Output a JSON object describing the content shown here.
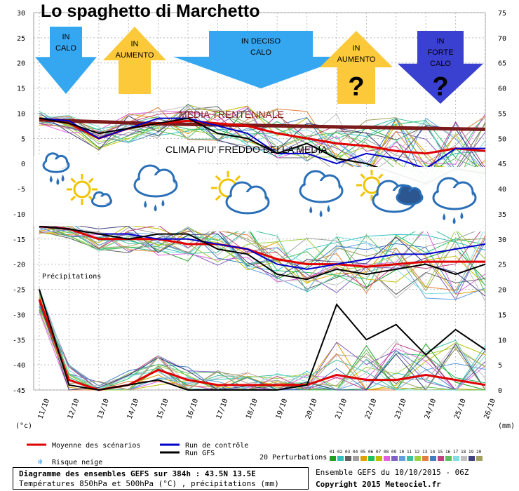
{
  "title": "Lo spaghetto di Marchetto",
  "chart_data": {
    "type": "line",
    "x_categories": [
      "11/10",
      "12/10",
      "13/10",
      "14/10",
      "15/10",
      "16/10",
      "17/10",
      "18/10",
      "19/10",
      "20/10",
      "21/10",
      "22/10",
      "23/10",
      "24/10",
      "25/10",
      "26/10"
    ],
    "left_axis": {
      "unit": "(°c)",
      "ticks": [
        30,
        25,
        20,
        15,
        10,
        5,
        0,
        -5,
        -10,
        -15,
        -20,
        -25,
        -30,
        -35,
        -40,
        -45
      ],
      "ylim": [
        -45,
        30
      ]
    },
    "right_axis": {
      "unit": "(mm)",
      "ticks": [
        75,
        70,
        65,
        60,
        55,
        50,
        45,
        40,
        35,
        30,
        25,
        20,
        15,
        10,
        5,
        0
      ],
      "ylim": [
        0,
        75
      ]
    },
    "grid": true,
    "series": [
      {
        "name": "Moyenne des scénarios",
        "color": "#e00000",
        "group": "t850",
        "values": [
          9,
          8,
          5,
          7,
          8,
          8.5,
          8,
          7.5,
          6,
          5,
          4,
          3.5,
          2.5,
          2,
          3,
          2.5
        ]
      },
      {
        "name": "Run de contrôle",
        "color": "#0000cc",
        "group": "t850",
        "values": [
          9,
          8.5,
          5,
          7,
          9,
          9,
          7.5,
          6,
          2,
          2,
          0,
          2,
          1,
          -1,
          3,
          3
        ]
      },
      {
        "name": "Run GFS",
        "color": "#000000",
        "group": "t850",
        "values": [
          9,
          8,
          6,
          7,
          8,
          9,
          6,
          5,
          2,
          4,
          1,
          0,
          -2,
          -4,
          -1,
          -2
        ]
      },
      {
        "name": "Moyenne des scénarios",
        "color": "#e00000",
        "group": "t500",
        "values": [
          -12.5,
          -13,
          -15,
          -15,
          -15,
          -16,
          -16,
          -17,
          -19,
          -20,
          -20,
          -20.5,
          -20,
          -19.5,
          -19.5,
          -19.5
        ]
      },
      {
        "name": "Run de contrôle",
        "color": "#0000cc",
        "group": "t500",
        "values": [
          -12.5,
          -13,
          -14,
          -14,
          -15,
          -15,
          -16,
          -17,
          -20,
          -21,
          -20,
          -19,
          -18,
          -18,
          -17,
          -16
        ]
      },
      {
        "name": "Run GFS",
        "color": "#000000",
        "group": "t500",
        "values": [
          -12.5,
          -13,
          -14,
          -15,
          -14,
          -14,
          -17,
          -18,
          -22,
          -23,
          -21,
          -22,
          -21,
          -20,
          -22,
          -20
        ]
      },
      {
        "name": "Moyenne des scénarios",
        "color": "#e00000",
        "group": "precip",
        "values": [
          18,
          2,
          0,
          1,
          4,
          2,
          1,
          1,
          1,
          1,
          3,
          2,
          2,
          3,
          2,
          1
        ]
      },
      {
        "name": "Run GFS",
        "color": "#000000",
        "group": "precip",
        "values": [
          20,
          1,
          0,
          1,
          2,
          0,
          0,
          0,
          0,
          1,
          17,
          10,
          13,
          7,
          12,
          8
        ]
      }
    ],
    "media_trentennale": [
      8.7,
      8.5,
      8.3,
      8.1,
      7.9,
      7.8,
      7.7,
      7.6,
      7.5,
      7.4,
      7.3,
      7.2,
      7.1,
      7.0,
      6.9,
      6.8
    ],
    "annotations": {
      "precip_label": "Précipitations",
      "media": "MEDIA TRENTENNALE",
      "clima": "CLIMA PIU' FREDDO DELLA MEDIA"
    },
    "arrows": [
      {
        "label1": "IN",
        "label2": "CALO",
        "label3": "",
        "question": "",
        "color": "#35a7f0",
        "direction": "down"
      },
      {
        "label1": "IN",
        "label2": "AUMENTO",
        "label3": "",
        "question": "",
        "color": "#fbc93a",
        "direction": "up"
      },
      {
        "label1": "IN DECISO",
        "label2": "CALO",
        "label3": "",
        "question": "",
        "color": "#35a7f0",
        "direction": "down"
      },
      {
        "label1": "IN",
        "label2": "AUMENTO",
        "label3": "",
        "question": "?",
        "color": "#fbc93a",
        "direction": "up"
      },
      {
        "label1": "IN",
        "label2": "FORTE",
        "label3": "CALO",
        "question": "?",
        "color": "#3a40d0",
        "direction": "down"
      }
    ],
    "weather_icons": [
      "rain",
      "sun-cloud",
      "cloud-rain",
      "sun-cloud",
      "cloud-rain",
      "sun-dark-cloud",
      "cloud-rain"
    ],
    "legend": {
      "mean": "Moyenne des scénarios",
      "control": "Run de contrôle",
      "gfs": "Run GFS",
      "snow": "Risque neige",
      "perturbations": "20 Perturbations",
      "pert_numbers": [
        "01",
        "02",
        "03",
        "04",
        "05",
        "06",
        "07",
        "08",
        "09",
        "10",
        "11",
        "12",
        "13",
        "14",
        "15",
        "16",
        "17",
        "18",
        "19",
        "20"
      ],
      "pert_colors": [
        "#20a020",
        "#30c0c0",
        "#606060",
        "#a0a0a0",
        "#e0a000",
        "#20c060",
        "#c0c000",
        "#e060e0",
        "#8060c0",
        "#60a0e0",
        "#40c0a0",
        "#a0d040",
        "#e08040",
        "#4080c0",
        "#c04080",
        "#60c060",
        "#80e0e0",
        "#c0c0c0",
        "#404080",
        "#a0a060"
      ]
    }
  },
  "footer": {
    "line1": "Diagramme des ensembles GEFS sur 384h : 43.5N 13.5E",
    "line2": "Températures 850hPa et 500hPa (°C) , précipitations (mm)",
    "right1": "Ensemble GEFS du 10/10/2015 - 06Z",
    "right2": "Copyright 2015 Meteociel.fr"
  }
}
